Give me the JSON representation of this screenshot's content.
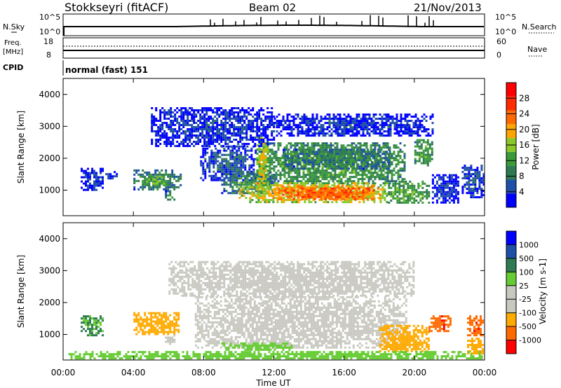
{
  "header": {
    "station": "Stokkseyri (fitACF)",
    "beam": "Beam 02",
    "date": "21/Nov/2013"
  },
  "strip_nsky": {
    "label": "N.Sky",
    "tick_top": "10^5",
    "tick_bottom": "10^0",
    "right_label": "N.Search",
    "right_tick_top": "10^5",
    "right_tick_bottom": "10^0"
  },
  "strip_freq": {
    "label_line1": "Freq.",
    "label_line2": "[MHz]",
    "tick_top": "18",
    "tick_bottom": "8",
    "right_label": "Nave",
    "right_tick_top": "60",
    "right_tick_bottom": "0"
  },
  "cpid": {
    "label": "CPID",
    "value": "normal (fast) 151"
  },
  "colors": {
    "power": [
      "#0000ff",
      "#1f50a8",
      "#2f7a52",
      "#3a9a3a",
      "#8ac82a",
      "#ffa500",
      "#ff6a00",
      "#ff2a00",
      "#ff0000"
    ],
    "velocity": [
      "#ff0000",
      "#ff6a00",
      "#ffaa00",
      "#c8c8c0",
      "#c8c8c0",
      "#66cc33",
      "#2f7a52",
      "#1f50a8",
      "#0000ff"
    ]
  },
  "chart_data": [
    {
      "type": "heatmap",
      "name": "Power",
      "title": "",
      "xlabel": "Time UT",
      "ylabel": "Slant Range [km]",
      "xlim": [
        0,
        24
      ],
      "ylim": [
        200,
        4500
      ],
      "x_ticks": [
        "00:00",
        "04:00",
        "08:00",
        "12:00",
        "16:00",
        "20:00",
        "00:00"
      ],
      "y_ticks": [
        1000,
        2000,
        3000,
        4000
      ],
      "colorbar": {
        "label": "Power [dB]",
        "ticks": [
          4,
          8,
          12,
          16,
          20,
          24,
          28
        ],
        "range": [
          0,
          32
        ]
      },
      "regions": [
        {
          "t0": 1.0,
          "t1": 2.2,
          "r0": 1000,
          "r1": 1700,
          "value": 5
        },
        {
          "t0": 2.4,
          "t1": 3.0,
          "r0": 1350,
          "r1": 1600,
          "value": 6
        },
        {
          "t0": 4.0,
          "t1": 6.7,
          "r0": 1000,
          "r1": 1650,
          "value": 12
        },
        {
          "t0": 4.6,
          "t1": 5.9,
          "r0": 1150,
          "r1": 1500,
          "value": 16
        },
        {
          "t0": 5.8,
          "t1": 6.3,
          "r0": 700,
          "r1": 1000,
          "value": 13
        },
        {
          "t0": 7.8,
          "t1": 11.0,
          "r0": 1300,
          "r1": 2400,
          "value": 7
        },
        {
          "t0": 9.0,
          "t1": 12.0,
          "r0": 900,
          "r1": 1600,
          "value": 11
        },
        {
          "t0": 11.0,
          "t1": 19.5,
          "r0": 1200,
          "r1": 2500,
          "value": 14
        },
        {
          "t0": 12.5,
          "t1": 18.5,
          "r0": 1700,
          "r1": 2300,
          "value": 11
        },
        {
          "t0": 10.0,
          "t1": 18.5,
          "r0": 650,
          "r1": 1250,
          "value": 22
        },
        {
          "t0": 12.0,
          "t1": 18.0,
          "r0": 700,
          "r1": 1150,
          "value": 28
        },
        {
          "t0": 11.0,
          "t1": 11.6,
          "r0": 900,
          "r1": 2700,
          "value": 20
        },
        {
          "t0": 18.5,
          "t1": 20.8,
          "r0": 600,
          "r1": 1300,
          "value": 15
        },
        {
          "t0": 20.0,
          "t1": 21.0,
          "r0": 1800,
          "r1": 2600,
          "value": 14
        },
        {
          "t0": 21.0,
          "t1": 22.5,
          "r0": 600,
          "r1": 1500,
          "value": 5
        },
        {
          "t0": 22.7,
          "t1": 23.9,
          "r0": 800,
          "r1": 1800,
          "value": 7
        },
        {
          "t0": 5.0,
          "t1": 12.0,
          "r0": 2400,
          "r1": 3600,
          "value": 5
        },
        {
          "t0": 12.0,
          "t1": 21.0,
          "r0": 2700,
          "r1": 3400,
          "value": 5
        }
      ]
    },
    {
      "type": "heatmap",
      "name": "Velocity",
      "title": "",
      "xlabel": "Time UT",
      "ylabel": "Slant Range [km]",
      "xlim": [
        0,
        24
      ],
      "ylim": [
        200,
        4500
      ],
      "x_ticks": [
        "00:00",
        "04:00",
        "08:00",
        "12:00",
        "16:00",
        "20:00",
        "00:00"
      ],
      "y_ticks": [
        1000,
        2000,
        3000,
        4000
      ],
      "colorbar": {
        "label": "Velocity [m s-1]",
        "ticks": [
          "1000",
          "500",
          "100",
          "25",
          "-25",
          "-100",
          "-500",
          "-1000"
        ]
      },
      "regions": [
        {
          "t0": 1.0,
          "t1": 2.2,
          "r0": 1000,
          "r1": 1600,
          "value": 100
        },
        {
          "t0": 4.0,
          "t1": 6.6,
          "r0": 1000,
          "r1": 1700,
          "value": -150
        },
        {
          "t0": 5.8,
          "t1": 6.3,
          "r0": 700,
          "r1": 1000,
          "value": 0
        },
        {
          "t0": 7.5,
          "t1": 19.5,
          "r0": 600,
          "r1": 2200,
          "value": 0
        },
        {
          "t0": 6.0,
          "t1": 20.0,
          "r0": 2200,
          "r1": 3300,
          "value": 0
        },
        {
          "t0": 9.0,
          "t1": 13.0,
          "r0": 550,
          "r1": 750,
          "value": 60
        },
        {
          "t0": 18.0,
          "t1": 20.8,
          "r0": 500,
          "r1": 1300,
          "value": -300
        },
        {
          "t0": 20.8,
          "t1": 22.0,
          "r0": 1100,
          "r1": 1600,
          "value": -800
        },
        {
          "t0": 23.0,
          "t1": 23.9,
          "r0": 1000,
          "r1": 1600,
          "value": -800
        },
        {
          "t0": 23.0,
          "t1": 23.9,
          "r0": 400,
          "r1": 900,
          "value": -200
        },
        {
          "t0": 0.3,
          "t1": 23.9,
          "r0": 220,
          "r1": 480,
          "value": 60
        }
      ]
    }
  ]
}
